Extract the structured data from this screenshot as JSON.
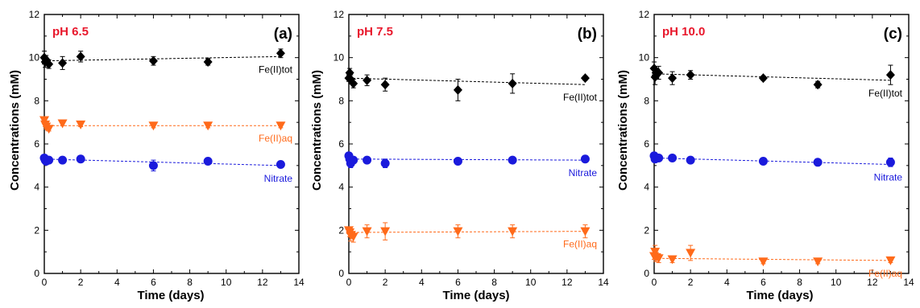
{
  "chart_data": [
    {
      "type": "scatter",
      "panel_label": "(a)",
      "title": "pH  6.5",
      "xlabel": "Time  (days)",
      "ylabel": "Concentrations  (mM)",
      "xlim": [
        0,
        14
      ],
      "ylim": [
        0,
        12
      ],
      "xticks": [
        "0",
        "2",
        "4",
        "6",
        "8",
        "10",
        "12",
        "14"
      ],
      "yticks": [
        "0",
        "2",
        "4",
        "6",
        "8",
        "10",
        "12"
      ],
      "series": [
        {
          "name": "Fe(II)tot",
          "color": "#000000",
          "marker": "diamond",
          "x": [
            0,
            0.05,
            0.1,
            0.25,
            1,
            2,
            6,
            9,
            13
          ],
          "y": [
            10.0,
            9.8,
            9.9,
            9.7,
            9.75,
            10.05,
            9.85,
            9.8,
            10.2
          ],
          "err": [
            0.3,
            0.25,
            0.2,
            0.2,
            0.3,
            0.25,
            0.2,
            0.15,
            0.2
          ],
          "fit": [
            [
              0,
              9.85
            ],
            [
              13,
              10.05
            ]
          ]
        },
        {
          "name": "Fe(II)aq",
          "color": "#ff6a1a",
          "marker": "triangle-down",
          "x": [
            0,
            0.05,
            0.1,
            0.25,
            1,
            2,
            6,
            9,
            13
          ],
          "y": [
            7.1,
            6.9,
            6.8,
            6.7,
            6.95,
            6.9,
            6.85,
            6.85,
            6.85
          ],
          "err": [
            0.1,
            0.1,
            0.1,
            0.1,
            0.1,
            0.1,
            0.1,
            0.1,
            0.1
          ],
          "fit": [
            [
              0,
              6.85
            ],
            [
              13,
              6.85
            ]
          ]
        },
        {
          "name": "Nitrate",
          "color": "#1a1adc",
          "marker": "circle",
          "x": [
            0,
            0.05,
            0.1,
            0.25,
            1,
            2,
            6,
            9,
            13
          ],
          "y": [
            5.35,
            5.25,
            5.2,
            5.25,
            5.25,
            5.3,
            5.0,
            5.2,
            5.05
          ],
          "err": [
            0.1,
            0.1,
            0.1,
            0.1,
            0.1,
            0.1,
            0.25,
            0.1,
            0.1
          ],
          "fit": [
            [
              0,
              5.3
            ],
            [
              13,
              5.0
            ]
          ]
        }
      ]
    },
    {
      "type": "scatter",
      "panel_label": "(b)",
      "title": "pH  7.5",
      "xlabel": "Time  (days)",
      "ylabel": "Concentrations  (mM)",
      "xlim": [
        0,
        14
      ],
      "ylim": [
        0,
        12
      ],
      "xticks": [
        "0",
        "2",
        "4",
        "6",
        "8",
        "10",
        "12",
        "14"
      ],
      "yticks": [
        "0",
        "2",
        "4",
        "6",
        "8",
        "10",
        "12"
      ],
      "series": [
        {
          "name": "Fe(II)tot",
          "color": "#000000",
          "marker": "diamond",
          "x": [
            0,
            0.05,
            0.1,
            0.25,
            1,
            2,
            6,
            9,
            13
          ],
          "y": [
            9.05,
            9.3,
            9.0,
            8.8,
            8.95,
            8.75,
            8.5,
            8.8,
            9.05
          ],
          "err": [
            0.15,
            0.2,
            0.2,
            0.2,
            0.25,
            0.3,
            0.5,
            0.45,
            0.1
          ],
          "fit": [
            [
              0,
              9.05
            ],
            [
              13,
              8.75
            ]
          ]
        },
        {
          "name": "Nitrate",
          "color": "#1a1adc",
          "marker": "circle",
          "x": [
            0,
            0.05,
            0.1,
            0.25,
            1,
            2,
            6,
            9,
            13
          ],
          "y": [
            5.45,
            5.3,
            5.1,
            5.25,
            5.25,
            5.1,
            5.2,
            5.25,
            5.3
          ],
          "err": [
            0.1,
            0.15,
            0.2,
            0.1,
            0.1,
            0.2,
            0.1,
            0.1,
            0.1
          ],
          "fit": [
            [
              0,
              5.3
            ],
            [
              13,
              5.25
            ]
          ]
        },
        {
          "name": "Fe(II)aq",
          "color": "#ff6a1a",
          "marker": "triangle-down",
          "x": [
            0,
            0.05,
            0.1,
            0.25,
            1,
            2,
            6,
            9,
            13
          ],
          "y": [
            2.0,
            1.9,
            1.75,
            1.7,
            1.95,
            1.95,
            1.95,
            1.95,
            1.95
          ],
          "err": [
            0.15,
            0.2,
            0.25,
            0.25,
            0.3,
            0.4,
            0.3,
            0.3,
            0.3
          ],
          "fit": [
            [
              0,
              1.9
            ],
            [
              13,
              1.95
            ]
          ]
        }
      ]
    },
    {
      "type": "scatter",
      "panel_label": "(c)",
      "title": "pH  10.0",
      "xlabel": "Time  (days)",
      "ylabel": "Concentrations  (mM)",
      "xlim": [
        0,
        14
      ],
      "ylim": [
        0,
        12
      ],
      "xticks": [
        "0",
        "2",
        "4",
        "6",
        "8",
        "10",
        "12",
        "14"
      ],
      "yticks": [
        "0",
        "2",
        "4",
        "6",
        "8",
        "10",
        "12"
      ],
      "series": [
        {
          "name": "Fe(II)tot",
          "color": "#000000",
          "marker": "diamond",
          "x": [
            0,
            0.05,
            0.1,
            0.25,
            1,
            2,
            6,
            9,
            13
          ],
          "y": [
            9.5,
            9.1,
            9.3,
            9.3,
            9.05,
            9.2,
            9.05,
            8.75,
            9.2
          ],
          "err": [
            0.3,
            0.35,
            0.2,
            0.3,
            0.3,
            0.2,
            0.1,
            0.15,
            0.45
          ],
          "fit": [
            [
              0,
              9.25
            ],
            [
              13,
              8.95
            ]
          ]
        },
        {
          "name": "Nitrate",
          "color": "#1a1adc",
          "marker": "circle",
          "x": [
            0,
            0.05,
            0.1,
            0.25,
            1,
            2,
            6,
            9,
            13
          ],
          "y": [
            5.45,
            5.3,
            5.35,
            5.35,
            5.35,
            5.25,
            5.2,
            5.15,
            5.15
          ],
          "err": [
            0.1,
            0.1,
            0.1,
            0.1,
            0.1,
            0.1,
            0.1,
            0.1,
            0.2
          ],
          "fit": [
            [
              0,
              5.35
            ],
            [
              13,
              5.05
            ]
          ]
        },
        {
          "name": "Fe(II)aq",
          "color": "#ff6a1a",
          "marker": "triangle-down",
          "x": [
            0,
            0.05,
            0.1,
            0.25,
            1,
            2,
            6,
            9,
            13
          ],
          "y": [
            0.8,
            1.0,
            0.75,
            0.7,
            0.65,
            0.95,
            0.55,
            0.55,
            0.6
          ],
          "err": [
            0.15,
            0.3,
            0.2,
            0.2,
            0.15,
            0.35,
            0.1,
            0.1,
            0.1
          ],
          "fit": [
            [
              0,
              0.7
            ],
            [
              13,
              0.6
            ]
          ]
        }
      ]
    }
  ]
}
